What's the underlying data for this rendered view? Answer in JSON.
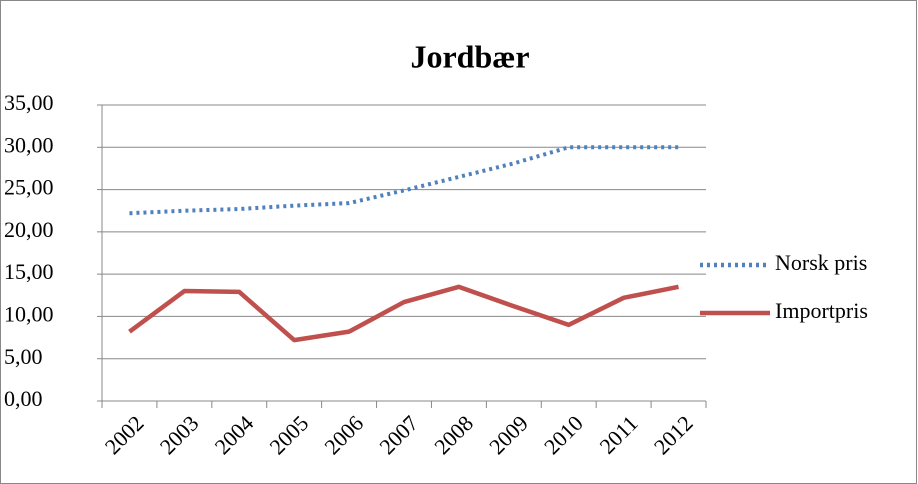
{
  "chart_data": {
    "type": "line",
    "title": "Jordbær",
    "categories": [
      "2002",
      "2003",
      "2004",
      "2005",
      "2006",
      "2007",
      "2008",
      "2009",
      "2010",
      "2011",
      "2012"
    ],
    "series": [
      {
        "name": "Norsk pris",
        "color": "#4f81bd",
        "values": [
          22.2,
          22.5,
          22.7,
          23.1,
          23.4,
          24.9,
          26.5,
          28.1,
          30,
          30,
          30
        ]
      },
      {
        "name": "Importpris",
        "color": "#c0504d",
        "values": [
          8.2,
          13.0,
          12.9,
          7.2,
          8.2,
          11.7,
          13.5,
          11.2,
          9.0,
          12.2,
          13.5
        ]
      }
    ],
    "ylim": [
      0,
      35
    ],
    "yticks": [
      {
        "value": 0,
        "label": "0,00"
      },
      {
        "value": 5,
        "label": "5,00"
      },
      {
        "value": 10,
        "label": "10,00"
      },
      {
        "value": 15,
        "label": "15,00"
      },
      {
        "value": 20,
        "label": "20,00"
      },
      {
        "value": 25,
        "label": "25,00"
      },
      {
        "value": 30,
        "label": "30,00"
      },
      {
        "value": 35,
        "label": "35,00"
      }
    ],
    "grid": true,
    "legend": "right"
  }
}
